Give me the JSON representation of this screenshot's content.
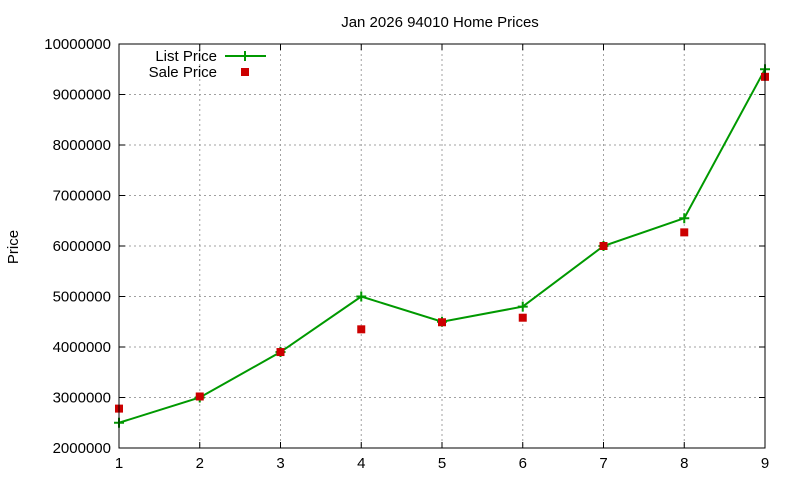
{
  "chart_data": {
    "type": "line",
    "title": "Jan 2026 94010 Home Prices",
    "xlabel": "",
    "ylabel": "Price",
    "x": [
      1,
      2,
      3,
      4,
      5,
      6,
      7,
      8,
      9
    ],
    "xlim": [
      1,
      9
    ],
    "ylim": [
      2000000,
      10000000
    ],
    "xticks": [
      "1",
      "2",
      "3",
      "4",
      "5",
      "6",
      "7",
      "8",
      "9"
    ],
    "yticks": [
      "2000000",
      "3000000",
      "4000000",
      "5000000",
      "6000000",
      "7000000",
      "8000000",
      "9000000",
      "10000000"
    ],
    "grid": true,
    "legend_position": "top-left",
    "series": [
      {
        "name": "List Price",
        "style": "linespoints",
        "color": "#009900",
        "values": [
          2500000,
          3000000,
          3900000,
          5000000,
          4500000,
          4800000,
          6000000,
          6550000,
          9500000
        ]
      },
      {
        "name": "Sale Price",
        "style": "points",
        "color": "#cc0000",
        "values": [
          2780000,
          3020000,
          3900000,
          4350000,
          4490000,
          4580000,
          6000000,
          6270000,
          9350000
        ]
      }
    ]
  }
}
